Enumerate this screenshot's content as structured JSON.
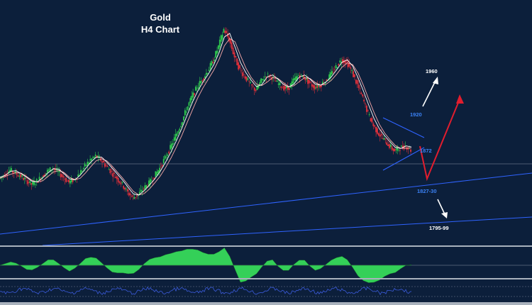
{
  "chart_data": {
    "type": "line",
    "title": "Gold",
    "subtitle": "H4 Chart",
    "xlabel": "",
    "ylabel": "",
    "ylim": [
      1780,
      1990
    ],
    "annotations": [
      {
        "text": "1960",
        "value": 1960,
        "color": "#ffffff"
      },
      {
        "text": "1920",
        "value": 1920,
        "color": "#3b82f6"
      },
      {
        "text": "1872",
        "value": 1872,
        "color": "#3b82f6"
      },
      {
        "text": "1827-30",
        "value": 1828,
        "color": "#3b82f6"
      },
      {
        "text": "1795-99",
        "value": 1797,
        "color": "#ffffff"
      }
    ],
    "series": [
      {
        "values": [
          1828,
          1832,
          1836,
          1833,
          1830,
          1826,
          1822,
          1825,
          1830,
          1835,
          1838,
          1834,
          1829,
          1824,
          1827,
          1833,
          1840,
          1846,
          1850,
          1846,
          1840,
          1834,
          1828,
          1822,
          1814,
          1809,
          1812,
          1818,
          1823,
          1830,
          1838,
          1848,
          1858,
          1870,
          1882,
          1896,
          1908,
          1918,
          1926,
          1934,
          1944,
          1958,
          1975,
          1965,
          1948,
          1935,
          1928,
          1920,
          1915,
          1924,
          1930,
          1928,
          1922,
          1918,
          1916,
          1924,
          1930,
          1928,
          1922,
          1918,
          1920,
          1924,
          1930,
          1938,
          1945,
          1943,
          1933,
          1920,
          1907,
          1892,
          1880,
          1872,
          1866,
          1860,
          1855,
          1858,
          1860,
          1856
        ]
      }
    ],
    "grid": false,
    "legend": "none"
  }
}
